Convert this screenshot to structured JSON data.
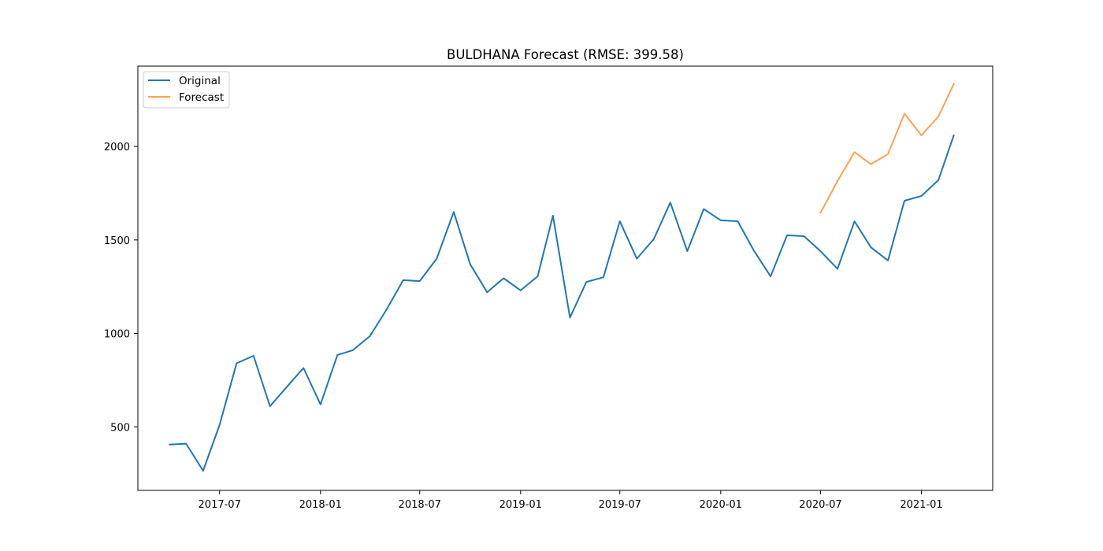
{
  "chart_data": {
    "type": "line",
    "title": "BULDHANA Forecast (RMSE: 399.58)",
    "xlabel": "",
    "ylabel": "",
    "x_ticks": [
      "2017-07",
      "2018-01",
      "2018-07",
      "2019-01",
      "2019-07",
      "2020-01",
      "2020-07",
      "2021-01"
    ],
    "y_ticks": [
      500,
      1000,
      1500,
      2000
    ],
    "ylim": [
      160,
      2430
    ],
    "xlim": [
      "2017-02-02",
      "2021-05-11"
    ],
    "grid": false,
    "legend_position": "top-left",
    "series": [
      {
        "name": "Original",
        "color": "#1f77b4",
        "x": [
          "2017-04",
          "2017-05",
          "2017-06",
          "2017-07",
          "2017-08",
          "2017-09",
          "2017-10",
          "2017-11",
          "2017-12",
          "2018-01",
          "2018-02",
          "2018-03",
          "2018-04",
          "2018-05",
          "2018-06",
          "2018-07",
          "2018-08",
          "2018-09",
          "2018-10",
          "2018-11",
          "2018-12",
          "2019-01",
          "2019-02",
          "2019-03",
          "2019-04",
          "2019-05",
          "2019-06",
          "2019-07",
          "2019-08",
          "2019-09",
          "2019-10",
          "2019-11",
          "2019-12",
          "2020-01",
          "2020-02",
          "2020-03",
          "2020-04",
          "2020-05",
          "2020-06",
          "2020-07",
          "2020-08",
          "2020-09",
          "2020-10",
          "2020-11",
          "2020-12",
          "2021-01",
          "2021-02",
          "2021-03"
        ],
        "values": [
          405,
          410,
          265,
          510,
          840,
          880,
          610,
          715,
          815,
          620,
          885,
          910,
          985,
          1125,
          1285,
          1280,
          1400,
          1650,
          1370,
          1220,
          1295,
          1230,
          1305,
          1630,
          1085,
          1275,
          1300,
          1600,
          1400,
          1505,
          1700,
          1440,
          1665,
          1605,
          1600,
          1445,
          1305,
          1525,
          1520,
          1440,
          1345,
          1600,
          1460,
          1390,
          1710,
          1735,
          1820,
          2060
        ]
      },
      {
        "name": "Forecast",
        "color": "#ffa14d",
        "x": [
          "2020-07",
          "2020-08",
          "2020-09",
          "2020-10",
          "2020-11",
          "2020-12",
          "2021-01",
          "2021-02",
          "2021-03"
        ],
        "values": [
          1645,
          1815,
          1970,
          1905,
          1960,
          2175,
          2060,
          2160,
          2335
        ]
      }
    ]
  }
}
